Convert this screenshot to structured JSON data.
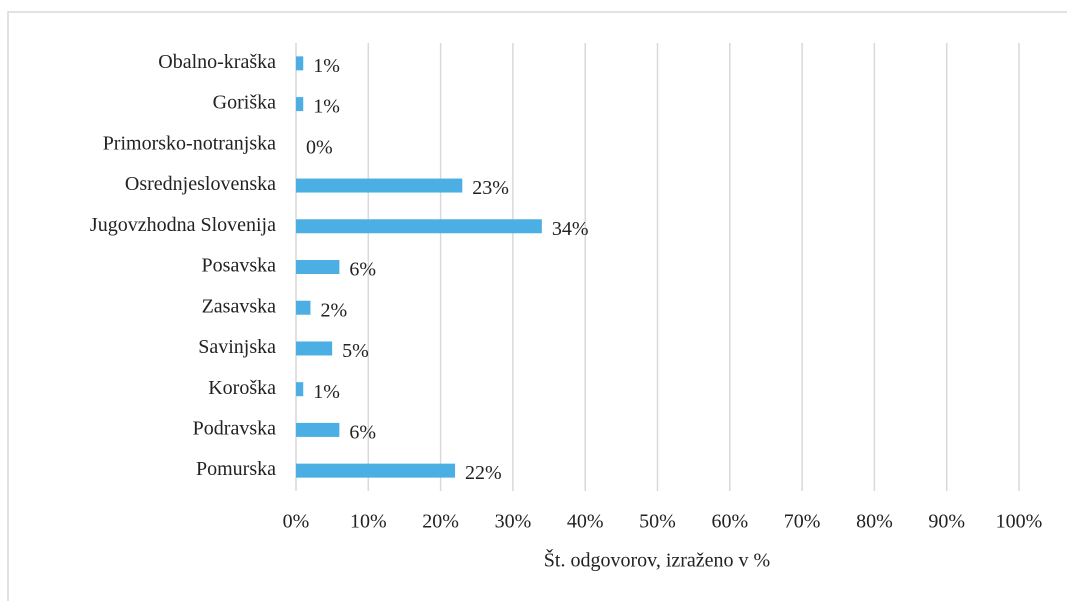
{
  "chart_data": {
    "type": "bar",
    "orientation": "horizontal",
    "x_label": "Št. odgovorov, izraženo v %",
    "categories": [
      "Obalno-kraška",
      "Goriška",
      "Primorsko-notranjska",
      "Osrednjeslovenska",
      "Jugovzhodna Slovenija",
      "Posavska",
      "Zasavska",
      "Savinjska",
      "Koroška",
      "Podravska",
      "Pomurska"
    ],
    "values": [
      1,
      1,
      0,
      23,
      34,
      6,
      2,
      5,
      1,
      6,
      22
    ],
    "value_labels": [
      "1%",
      "1%",
      "0%",
      "23%",
      "34%",
      "6%",
      "2%",
      "5%",
      "1%",
      "6%",
      "22%"
    ],
    "color": "#4bafe3",
    "xlim": [
      0,
      100
    ],
    "xticks": [
      {
        "value": 0,
        "label": "0%"
      },
      {
        "value": 10,
        "label": "10%"
      },
      {
        "value": 20,
        "label": "20%"
      },
      {
        "value": 30,
        "label": "30%"
      },
      {
        "value": 40,
        "label": "40%"
      },
      {
        "value": 50,
        "label": "50%"
      },
      {
        "value": 60,
        "label": "60%"
      },
      {
        "value": 70,
        "label": "70%"
      },
      {
        "value": 80,
        "label": "80%"
      },
      {
        "value": 90,
        "label": "90%"
      },
      {
        "value": 100,
        "label": "100%"
      }
    ],
    "grid": true
  }
}
